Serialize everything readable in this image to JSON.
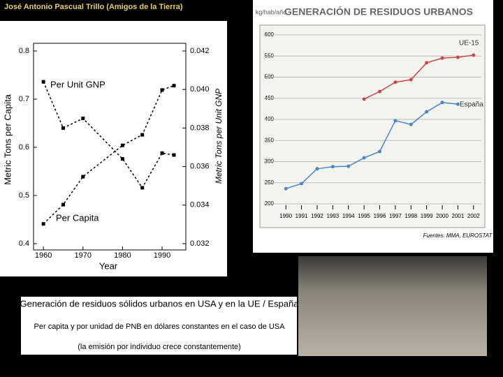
{
  "header": {
    "author": "José Antonio Pascual Trillo (Amigos de la Tierra)"
  },
  "caption": {
    "title": "Generación de residuos sólidos urbanos en USA y en la UE / España",
    "line1": "Per capita y por unidad de PNB en dólares constantes en el caso de USA",
    "line2": "(la emisión por individuo crece constantemente)"
  },
  "chart_data": [
    {
      "type": "line",
      "x_label": "Year",
      "y_label": "Metric Tons per Capita",
      "y2_label": "Metric Tons per Unit GNP",
      "xlim": [
        1957.5,
        1996
      ],
      "xticks": [
        1960,
        1970,
        1980,
        1990
      ],
      "ylim": [
        0.4,
        0.8
      ],
      "yticks": [
        0.4,
        0.5,
        0.6,
        0.7,
        0.8
      ],
      "y2lim": [
        0.032,
        0.042
      ],
      "y2ticks": [
        0.032,
        0.034,
        0.036,
        0.038,
        {
          "value": 0.04,
          "label": "0.040"
        },
        0.042
      ],
      "series": [
        {
          "name": "Per Capita",
          "color": "#000000",
          "x": [
            1960,
            1965,
            1970,
            1980,
            1985,
            1990,
            1993
          ],
          "values": [
            0.441,
            0.481,
            0.539,
            0.604,
            0.626,
            0.719,
            0.728
          ]
        },
        {
          "name": "Per Unit GNP",
          "color": "#000000",
          "axis": "y2",
          "x": [
            1960,
            1965,
            1970,
            1980,
            1985,
            1990,
            1993
          ],
          "values": [
            0.0404,
            0.038,
            0.0385,
            0.0364,
            0.0349,
            0.0367,
            0.0366
          ]
        }
      ]
    },
    {
      "type": "line",
      "title": "GENERACIÓN DE RESIDUOS URBANOS",
      "y_label": "kg/hab/año",
      "source": "Fuentes: MMA, EUROSTAT",
      "grid": true,
      "xlim": [
        1989.5,
        2002.5
      ],
      "xticks": [
        1990,
        1991,
        1992,
        1993,
        1994,
        1995,
        1996,
        1997,
        1998,
        1999,
        2000,
        2001,
        2002
      ],
      "ylim": [
        200,
        600
      ],
      "yticks": [
        200,
        250,
        300,
        350,
        400,
        450,
        500,
        550,
        600
      ],
      "series": [
        {
          "name": "UE-15",
          "color": "#c84848",
          "x": [
            1995,
            1996,
            1997,
            1998,
            1999,
            2000,
            2001,
            2002
          ],
          "values": [
            448,
            466,
            488,
            494,
            534,
            545,
            547,
            552
          ]
        },
        {
          "name": "España",
          "color": "#4a86c8",
          "x": [
            1990,
            1991,
            1992,
            1993,
            1994,
            1995,
            1996,
            1997,
            1998,
            1999,
            2000,
            2001
          ],
          "values": [
            236,
            248,
            283,
            288,
            289,
            309,
            324,
            397,
            388,
            418,
            440,
            436
          ]
        }
      ]
    }
  ]
}
